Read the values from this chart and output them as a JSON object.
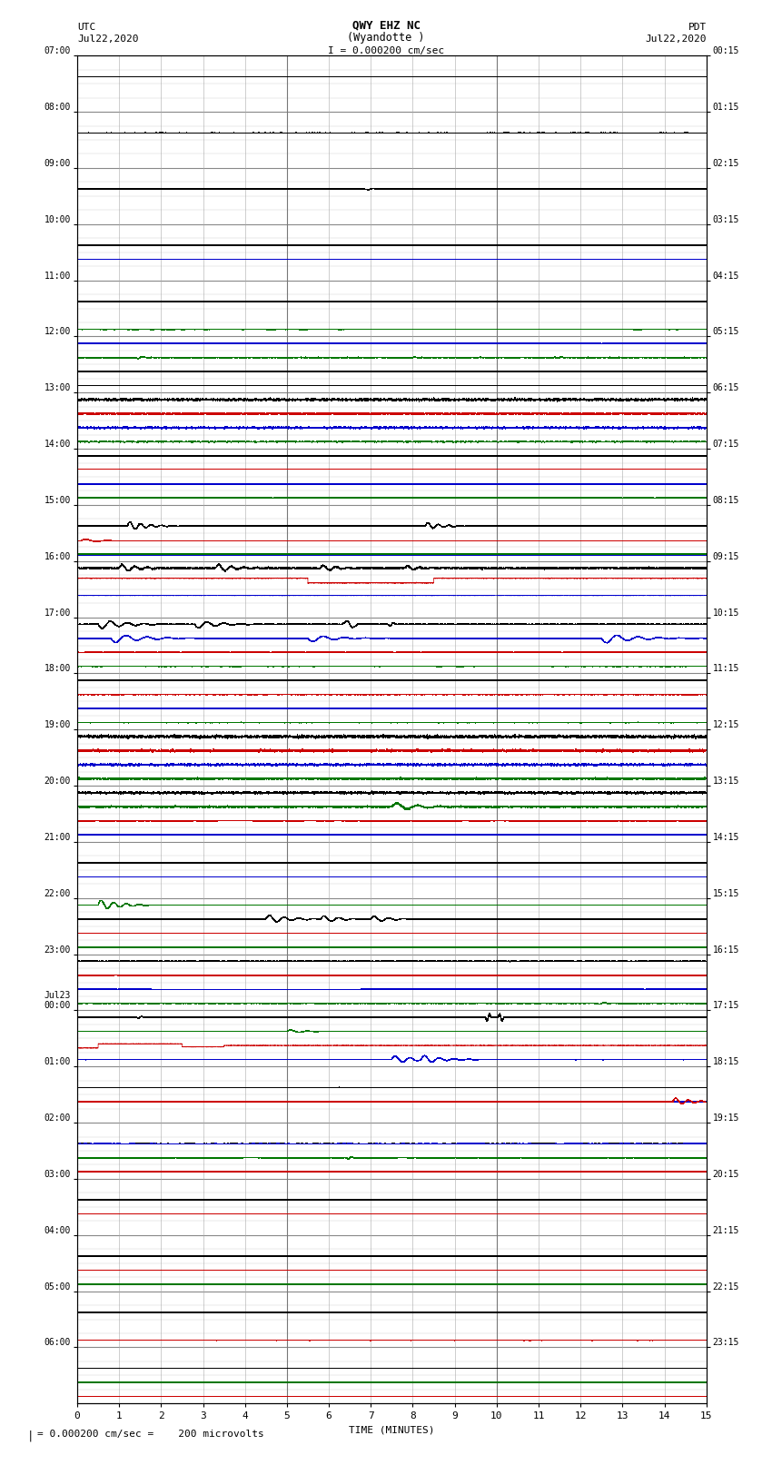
{
  "title_line1": "QWY EHZ NC",
  "title_line2": "(Wyandotte )",
  "scale_label": "I = 0.000200 cm/sec",
  "xlabel": "TIME (MINUTES)",
  "footer_label": "= 0.000200 cm/sec =    200 microvolts",
  "xlim": [
    0,
    15
  ],
  "xticks": [
    0,
    1,
    2,
    3,
    4,
    5,
    6,
    7,
    8,
    9,
    10,
    11,
    12,
    13,
    14,
    15
  ],
  "left_ytick_labels": [
    "07:00",
    "08:00",
    "09:00",
    "10:00",
    "11:00",
    "12:00",
    "13:00",
    "14:00",
    "15:00",
    "16:00",
    "17:00",
    "18:00",
    "19:00",
    "20:00",
    "21:00",
    "22:00",
    "23:00",
    "Jul23\n00:00",
    "01:00",
    "02:00",
    "03:00",
    "04:00",
    "05:00",
    "06:00"
  ],
  "right_ytick_labels": [
    "00:15",
    "01:15",
    "02:15",
    "03:15",
    "04:15",
    "05:15",
    "06:15",
    "07:15",
    "08:15",
    "09:15",
    "10:15",
    "11:15",
    "12:15",
    "13:15",
    "14:15",
    "15:15",
    "16:15",
    "17:15",
    "18:15",
    "19:15",
    "20:15",
    "21:15",
    "22:15",
    "23:15"
  ],
  "n_rows": 24,
  "n_subrows": 4,
  "bg_color": "white",
  "grid_color": "#aaaaaa",
  "line_colors": {
    "black": "#000000",
    "red": "#cc0000",
    "blue": "#0000cc",
    "green": "#007700"
  },
  "vline_color": "#777777",
  "vline_positions": [
    5.0,
    10.0
  ]
}
